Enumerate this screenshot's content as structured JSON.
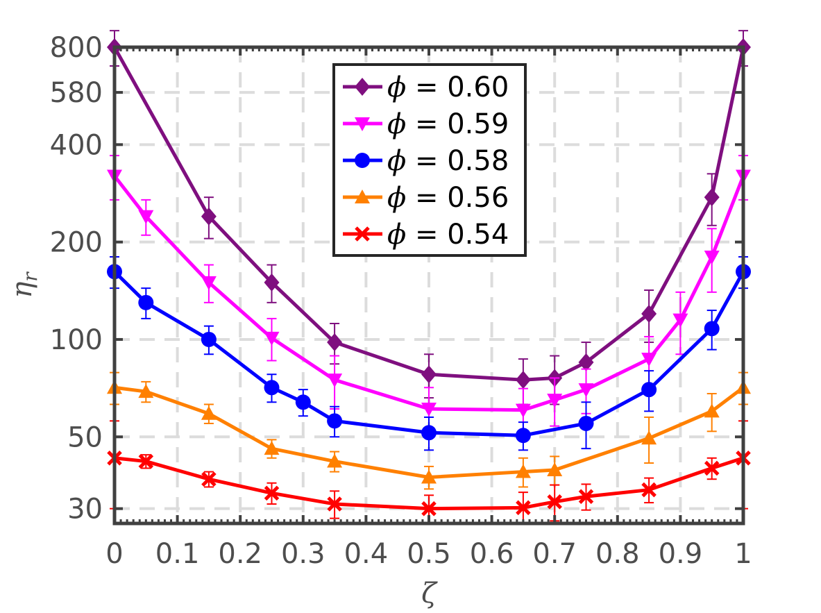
{
  "chart_data": {
    "type": "line",
    "title": "",
    "xlabel": "ζ",
    "ylabel": "η",
    "ylabel_subscript": "r",
    "y_scale": "log",
    "xlim": [
      0,
      1
    ],
    "ylim": [
      27,
      800
    ],
    "grid": true,
    "legend_position": "top-center",
    "x_ticks": [
      0,
      0.1,
      0.2,
      0.3,
      0.4,
      0.5,
      0.6,
      0.7,
      0.8,
      0.9,
      1
    ],
    "x_tick_labels": [
      "0",
      "0.1",
      "0.2",
      "0.3",
      "0.4",
      "0.5",
      "0.6",
      "0.7",
      "0.8",
      "0.9",
      "1"
    ],
    "y_ticks": [
      30,
      50,
      100,
      200,
      400,
      580,
      800
    ],
    "y_tick_labels": [
      "30",
      "50",
      "100",
      "200",
      "400",
      "580",
      "800"
    ],
    "series": [
      {
        "name": "ϕ = 0.60",
        "symbol": "ϕ",
        "value_label": " = 0.60",
        "color": "#7f0f7f",
        "marker": "diamond",
        "x": [
          0,
          0.15,
          0.25,
          0.35,
          0.5,
          0.65,
          0.7,
          0.75,
          0.85,
          0.95,
          1
        ],
        "y": [
          800,
          240,
          150,
          98,
          78,
          75,
          76,
          85,
          120,
          275,
          800
        ],
        "err": [
          100,
          35,
          20,
          14,
          12,
          12,
          13,
          13,
          22,
          50,
          100
        ]
      },
      {
        "name": "ϕ = 0.59",
        "symbol": "ϕ",
        "value_label": " = 0.59",
        "color": "#ff00ff",
        "marker": "triangle-down",
        "x": [
          0,
          0.05,
          0.15,
          0.25,
          0.35,
          0.5,
          0.65,
          0.7,
          0.75,
          0.85,
          0.9,
          0.95,
          1
        ],
        "y": [
          320,
          240,
          150,
          101,
          75,
          61,
          60.5,
          65,
          70,
          87,
          115,
          180,
          320
        ],
        "err": [
          50,
          30,
          20,
          15,
          14,
          10,
          10,
          11,
          11,
          15,
          25,
          40,
          50
        ]
      },
      {
        "name": "ϕ = 0.58",
        "symbol": "ϕ",
        "value_label": " = 0.58",
        "color": "#0000ff",
        "marker": "circle-star",
        "x": [
          0,
          0.05,
          0.15,
          0.25,
          0.3,
          0.35,
          0.5,
          0.65,
          0.75,
          0.85,
          0.95,
          1
        ],
        "y": [
          162,
          130,
          100,
          71,
          64,
          56,
          51.5,
          50.5,
          55,
          70,
          108,
          162
        ],
        "err": [
          18,
          14,
          10,
          7,
          6,
          6,
          6,
          5,
          9,
          10,
          15,
          18
        ]
      },
      {
        "name": "ϕ = 0.56",
        "symbol": "ϕ",
        "value_label": " = 0.56",
        "color": "#ff8000",
        "marker": "triangle-up",
        "x": [
          0,
          0.05,
          0.15,
          0.25,
          0.35,
          0.5,
          0.65,
          0.7,
          0.85,
          0.95,
          1
        ],
        "y": [
          71,
          69,
          59,
          46,
          42,
          37.5,
          39,
          39.5,
          49.5,
          60,
          71
        ],
        "err": [
          8,
          5,
          4,
          3,
          3,
          3,
          4,
          4,
          8,
          8,
          8
        ]
      },
      {
        "name": "ϕ = 0.54",
        "symbol": "ϕ",
        "value_label": " = 0.54",
        "color": "#ff0000",
        "marker": "x",
        "x": [
          0,
          0.05,
          0.15,
          0.25,
          0.35,
          0.5,
          0.65,
          0.7,
          0.75,
          0.85,
          0.95,
          1
        ],
        "y": [
          43,
          42,
          37,
          33.5,
          31,
          30,
          30.2,
          31.5,
          32.7,
          34.3,
          40,
          43
        ],
        "err": [
          13,
          2,
          2,
          2.5,
          3,
          3,
          3.5,
          4,
          3,
          3,
          3,
          13
        ]
      }
    ]
  }
}
